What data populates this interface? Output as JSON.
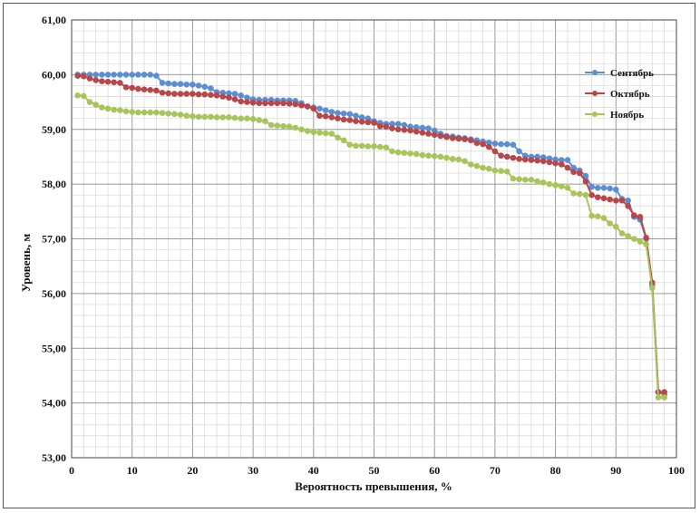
{
  "chart_data": {
    "type": "line",
    "xlabel": "Вероятность превышения, %",
    "ylabel": "Уровень, м",
    "xlim": [
      0,
      100
    ],
    "ylim": [
      53,
      61
    ],
    "x_ticks": [
      "0",
      "10",
      "20",
      "30",
      "40",
      "50",
      "60",
      "70",
      "80",
      "90",
      "100"
    ],
    "y_ticks": [
      "53,00",
      "54,00",
      "55,00",
      "56,00",
      "57,00",
      "58,00",
      "59,00",
      "60,00",
      "61,00"
    ],
    "grid": "major and minor",
    "legend_position": "top-right",
    "series": [
      {
        "name": "Сентябрь",
        "color": "#5b8fd1",
        "x": [
          1,
          2,
          3,
          4,
          5,
          6,
          7,
          8,
          9,
          10,
          11,
          12,
          13,
          14,
          15,
          16,
          17,
          18,
          19,
          20,
          21,
          22,
          23,
          24,
          25,
          26,
          27,
          28,
          29,
          30,
          31,
          32,
          33,
          34,
          35,
          36,
          37,
          38,
          39,
          40,
          41,
          42,
          43,
          44,
          45,
          46,
          47,
          48,
          49,
          50,
          51,
          52,
          53,
          54,
          55,
          56,
          57,
          58,
          59,
          60,
          61,
          62,
          63,
          64,
          65,
          66,
          67,
          68,
          69,
          70,
          71,
          72,
          73,
          74,
          75,
          76,
          77,
          78,
          79,
          80,
          81,
          82,
          83,
          84,
          85,
          86,
          87,
          88,
          89,
          90,
          91,
          92,
          93,
          94,
          95,
          96,
          97,
          98
        ],
        "y": [
          60.0,
          60.0,
          60.0,
          60.0,
          60.0,
          60.0,
          60.0,
          60.0,
          60.0,
          60.0,
          60.0,
          60.0,
          60.0,
          59.98,
          59.85,
          59.84,
          59.83,
          59.83,
          59.82,
          59.82,
          59.8,
          59.78,
          59.75,
          59.68,
          59.67,
          59.66,
          59.65,
          59.62,
          59.58,
          59.55,
          59.54,
          59.54,
          59.54,
          59.53,
          59.53,
          59.53,
          59.52,
          59.48,
          59.42,
          59.4,
          59.38,
          59.35,
          59.32,
          59.3,
          59.29,
          59.28,
          59.25,
          59.22,
          59.2,
          59.15,
          59.12,
          59.1,
          59.1,
          59.1,
          59.08,
          59.05,
          59.04,
          59.03,
          59.02,
          58.98,
          58.92,
          58.88,
          58.87,
          58.85,
          58.84,
          58.82,
          58.8,
          58.78,
          58.76,
          58.74,
          58.73,
          58.73,
          58.72,
          58.6,
          58.52,
          58.5,
          58.5,
          58.49,
          58.47,
          58.45,
          58.44,
          58.44,
          58.3,
          58.25,
          58.15,
          57.95,
          57.93,
          57.93,
          57.92,
          57.9,
          57.73,
          57.7,
          57.4,
          57.35,
          57.0,
          56.15,
          54.2,
          54.15
        ]
      },
      {
        "name": "Октябрь",
        "color": "#b8474a",
        "x": [
          1,
          2,
          3,
          4,
          5,
          6,
          7,
          8,
          9,
          10,
          11,
          12,
          13,
          14,
          15,
          16,
          17,
          18,
          19,
          20,
          21,
          22,
          23,
          24,
          25,
          26,
          27,
          28,
          29,
          30,
          31,
          32,
          33,
          34,
          35,
          36,
          37,
          38,
          39,
          40,
          41,
          42,
          43,
          44,
          45,
          46,
          47,
          48,
          49,
          50,
          51,
          52,
          53,
          54,
          55,
          56,
          57,
          58,
          59,
          60,
          61,
          62,
          63,
          64,
          65,
          66,
          67,
          68,
          69,
          70,
          71,
          72,
          73,
          74,
          75,
          76,
          77,
          78,
          79,
          80,
          81,
          82,
          83,
          84,
          85,
          86,
          87,
          88,
          89,
          90,
          91,
          92,
          93,
          94,
          95,
          96,
          97,
          98
        ],
        "y": [
          59.98,
          59.97,
          59.93,
          59.9,
          59.88,
          59.87,
          59.86,
          59.85,
          59.77,
          59.76,
          59.74,
          59.73,
          59.72,
          59.71,
          59.67,
          59.66,
          59.65,
          59.65,
          59.65,
          59.65,
          59.64,
          59.64,
          59.63,
          59.62,
          59.6,
          59.58,
          59.55,
          59.51,
          59.5,
          59.49,
          59.48,
          59.48,
          59.48,
          59.48,
          59.48,
          59.47,
          59.46,
          59.44,
          59.42,
          59.38,
          59.25,
          59.24,
          59.22,
          59.2,
          59.18,
          59.17,
          59.15,
          59.14,
          59.13,
          59.12,
          59.06,
          59.05,
          59.02,
          59.0,
          58.99,
          58.98,
          58.96,
          58.94,
          58.92,
          58.9,
          58.88,
          58.86,
          58.84,
          58.83,
          58.82,
          58.8,
          58.75,
          58.73,
          58.68,
          58.6,
          58.52,
          58.5,
          58.48,
          58.46,
          58.45,
          58.44,
          58.43,
          58.42,
          58.4,
          58.38,
          58.36,
          58.3,
          58.22,
          58.2,
          58.05,
          57.8,
          57.76,
          57.74,
          57.72,
          57.7,
          57.7,
          57.6,
          57.43,
          57.4,
          57.02,
          56.2,
          54.2,
          54.2
        ]
      },
      {
        "name": "Ноябрь",
        "color": "#a8c45a",
        "x": [
          1,
          2,
          3,
          4,
          5,
          6,
          7,
          8,
          9,
          10,
          11,
          12,
          13,
          14,
          15,
          16,
          17,
          18,
          19,
          20,
          21,
          22,
          23,
          24,
          25,
          26,
          27,
          28,
          29,
          30,
          31,
          32,
          33,
          34,
          35,
          36,
          37,
          38,
          39,
          40,
          41,
          42,
          43,
          44,
          45,
          46,
          47,
          48,
          49,
          50,
          51,
          52,
          53,
          54,
          55,
          56,
          57,
          58,
          59,
          60,
          61,
          62,
          63,
          64,
          65,
          66,
          67,
          68,
          69,
          70,
          71,
          72,
          73,
          74,
          75,
          76,
          77,
          78,
          79,
          80,
          81,
          82,
          83,
          84,
          85,
          86,
          87,
          88,
          89,
          90,
          91,
          92,
          93,
          94,
          95,
          96,
          97,
          98
        ],
        "y": [
          59.62,
          59.61,
          59.5,
          59.45,
          59.4,
          59.38,
          59.36,
          59.35,
          59.33,
          59.32,
          59.31,
          59.31,
          59.31,
          59.31,
          59.3,
          59.29,
          59.28,
          59.27,
          59.25,
          59.24,
          59.23,
          59.23,
          59.23,
          59.22,
          59.22,
          59.22,
          59.21,
          59.2,
          59.2,
          59.19,
          59.17,
          59.15,
          59.08,
          59.07,
          59.06,
          59.05,
          59.03,
          59.0,
          58.97,
          58.95,
          58.94,
          58.93,
          58.92,
          58.85,
          58.8,
          58.72,
          58.7,
          58.7,
          58.69,
          58.69,
          58.68,
          58.67,
          58.6,
          58.58,
          58.57,
          58.56,
          58.55,
          58.53,
          58.52,
          58.51,
          58.5,
          58.48,
          58.46,
          58.45,
          58.42,
          58.36,
          58.33,
          58.3,
          58.28,
          58.25,
          58.24,
          58.23,
          58.1,
          58.09,
          58.08,
          58.08,
          58.05,
          58.03,
          58.0,
          57.98,
          57.96,
          57.93,
          57.83,
          57.82,
          57.8,
          57.42,
          57.41,
          57.38,
          57.28,
          57.22,
          57.1,
          57.05,
          57.0,
          56.95,
          56.9,
          56.1,
          54.1,
          54.1
        ]
      }
    ]
  }
}
